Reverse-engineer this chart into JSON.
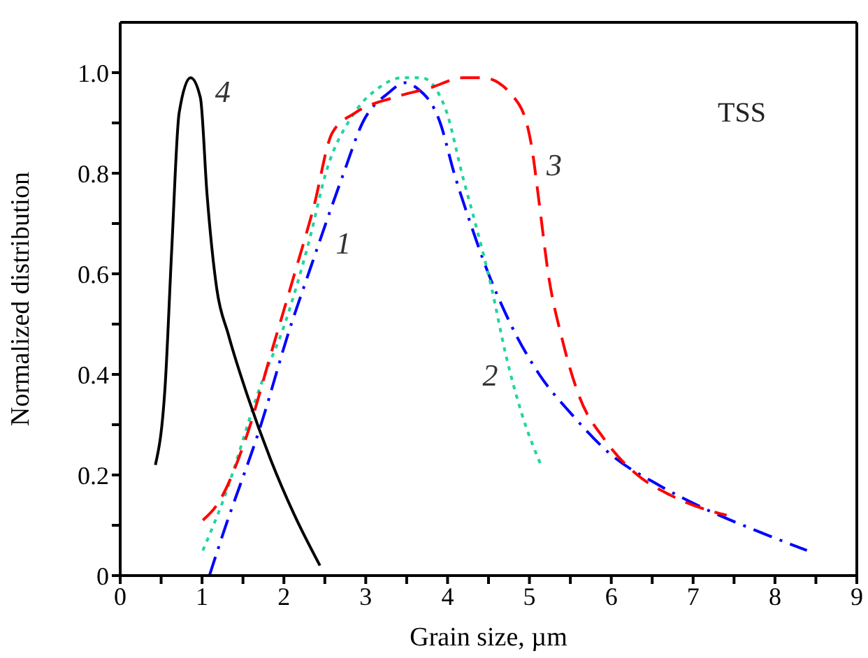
{
  "chart_data": {
    "type": "line",
    "xlabel": "Grain size, µm",
    "ylabel": "Normalized distribution",
    "xlim": [
      0,
      9
    ],
    "ylim": [
      0,
      1.1
    ],
    "xticks": [
      0,
      {
        "value": 0.5,
        "label": null
      },
      1,
      {
        "value": 1.5,
        "label": null
      },
      2,
      {
        "value": 2.5,
        "label": null
      },
      3,
      {
        "value": 3.5,
        "label": null
      },
      4,
      {
        "value": 4.5,
        "label": null
      },
      5,
      {
        "value": 5.5,
        "label": null
      },
      6,
      {
        "value": 6.5,
        "label": null
      },
      7,
      {
        "value": 7.5,
        "label": null
      },
      8,
      {
        "value": 8.5,
        "label": null
      },
      9
    ],
    "yticks": [
      0,
      {
        "value": 0.1,
        "label": null
      },
      0.2,
      {
        "value": 0.3,
        "label": null
      },
      0.4,
      {
        "value": 0.5,
        "label": null
      },
      0.6,
      {
        "value": 0.7,
        "label": null
      },
      0.8,
      {
        "value": 0.9,
        "label": null
      },
      {
        "value": 1,
        "label": "1.0"
      }
    ],
    "marker": "none",
    "series": [
      {
        "name": "1",
        "color": "#0000ff",
        "line_style": "dashdot",
        "x": [
          1.09,
          1.25,
          1.72,
          2.07,
          2.3,
          2.73,
          2.96,
          3.28,
          3.48,
          3.62,
          3.91,
          4.08,
          4.28,
          4.43,
          4.77,
          5.12,
          5.52,
          6.0,
          6.58,
          7.18,
          7.76,
          8.39
        ],
        "values": [
          0,
          0.08,
          0.3,
          0.49,
          0.6,
          0.8,
          0.9,
          0.96,
          0.98,
          0.97,
          0.9,
          0.8,
          0.7,
          0.63,
          0.5,
          0.4,
          0.32,
          0.24,
          0.18,
          0.13,
          0.09,
          0.05
        ]
      },
      {
        "name": "2",
        "color": "#1fd5a0",
        "line_style": "dotted",
        "x": [
          1.01,
          1.26,
          1.72,
          2.01,
          2.3,
          2.53,
          2.82,
          3.16,
          3.45,
          3.68,
          3.97,
          4.19,
          4.34,
          4.54,
          4.71,
          4.91,
          5.14
        ],
        "values": [
          0.05,
          0.15,
          0.38,
          0.5,
          0.66,
          0.81,
          0.91,
          0.97,
          0.99,
          0.99,
          0.93,
          0.79,
          0.7,
          0.57,
          0.44,
          0.32,
          0.22
        ]
      },
      {
        "name": "3",
        "color": "#ff0000",
        "line_style": "dashed",
        "x": [
          1.01,
          1.18,
          1.55,
          1.84,
          2.13,
          2.36,
          2.59,
          2.87,
          3.33,
          3.79,
          4.19,
          4.43,
          4.86,
          5.03,
          5.12,
          5.23,
          5.4,
          5.6,
          5.92,
          6.32,
          6.72,
          7.18,
          7.41
        ],
        "values": [
          0.11,
          0.14,
          0.28,
          0.44,
          0.6,
          0.73,
          0.88,
          0.92,
          0.95,
          0.97,
          0.99,
          0.99,
          0.94,
          0.85,
          0.74,
          0.6,
          0.47,
          0.36,
          0.27,
          0.2,
          0.16,
          0.13,
          0.12
        ]
      },
      {
        "name": "4",
        "color": "#000000",
        "line_style": "solid",
        "x": [
          0.43,
          0.55,
          0.63,
          0.72,
          0.86,
          0.98,
          1.06,
          1.18,
          1.32,
          1.55,
          1.84,
          2.13,
          2.44
        ],
        "values": [
          0.22,
          0.38,
          0.65,
          0.92,
          0.99,
          0.95,
          0.76,
          0.57,
          0.48,
          0.36,
          0.23,
          0.12,
          0.02
        ]
      }
    ],
    "annotations": [
      "TSS"
    ]
  }
}
